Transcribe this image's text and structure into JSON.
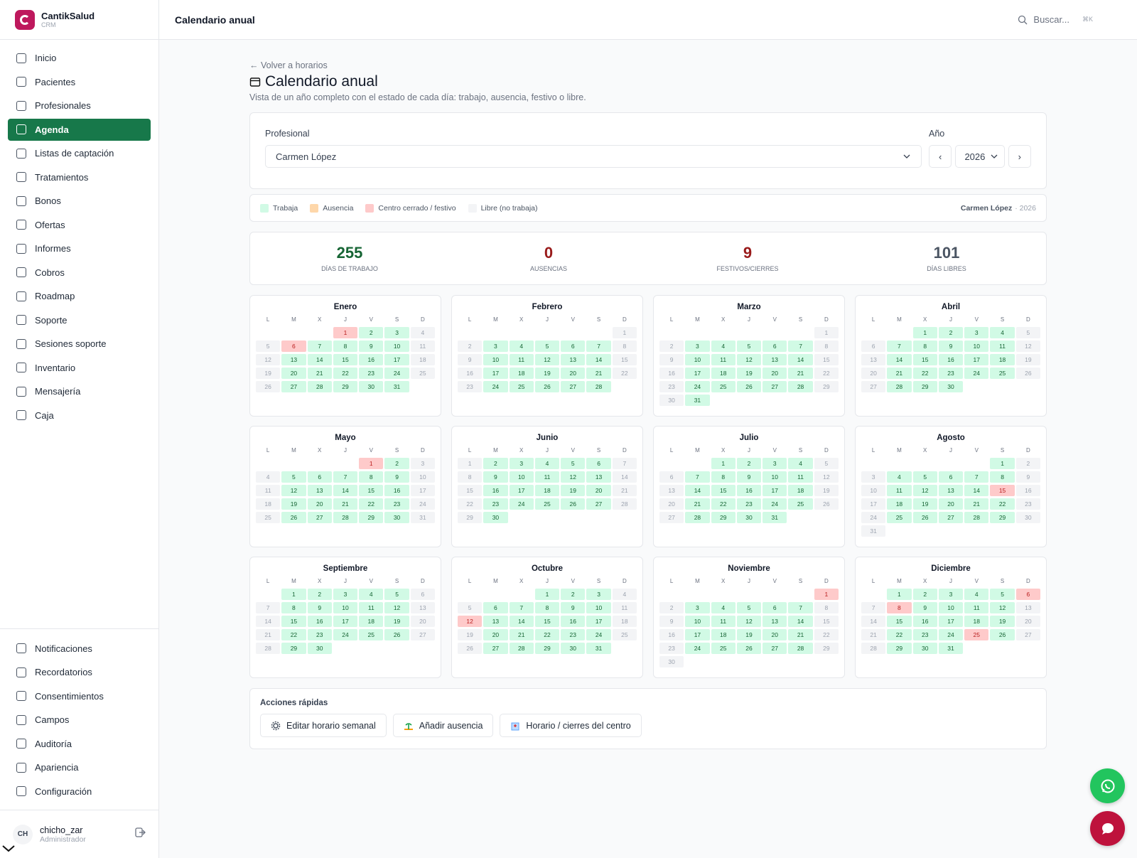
{
  "sidebar": {
    "brand": "CantikSalud",
    "brand_sub": "CRM",
    "nav": [
      {
        "label": "Inicio"
      },
      {
        "label": "Pacientes"
      },
      {
        "label": "Profesionales"
      },
      {
        "label": "Agenda",
        "active": true
      },
      {
        "label": "Listas de captación"
      },
      {
        "label": "Tratamientos"
      },
      {
        "label": "Bonos"
      },
      {
        "label": "Ofertas"
      },
      {
        "label": "Informes"
      },
      {
        "label": "Cobros"
      },
      {
        "label": "Roadmap"
      },
      {
        "label": "Soporte"
      },
      {
        "label": "Sesiones soporte"
      },
      {
        "label": "Inventario"
      },
      {
        "label": "Mensajería"
      },
      {
        "label": "Caja"
      }
    ],
    "nav_bottom": [
      {
        "label": "Notificaciones"
      },
      {
        "label": "Recordatorios"
      },
      {
        "label": "Consentimientos"
      },
      {
        "label": "Campos"
      },
      {
        "label": "Auditoría"
      },
      {
        "label": "Apariencia"
      },
      {
        "label": "Configuración"
      }
    ],
    "user": {
      "initials": "CH",
      "name": "chicho_zar",
      "role": "Administrador"
    }
  },
  "topbar": {
    "title": "Calendario anual",
    "search": "Buscar...",
    "shortcut": "⌘K"
  },
  "page": {
    "back": "← Volver a horarios",
    "title": "Calendario anual",
    "subtitle": "Vista de un año completo con el estado de cada día: trabajo, ausencia, festivo o libre."
  },
  "filters": {
    "professional_label": "Profesional",
    "professional": "Carmen López",
    "year_label": "Año",
    "year": "2026",
    "prev": "‹",
    "next": "›"
  },
  "legend": {
    "items": [
      {
        "label": "Trabaja",
        "color": "#d1fae5",
        "text_color": "#166534"
      },
      {
        "label": "Ausencia",
        "color": "#fed7aa",
        "text_color": "#9a3412"
      },
      {
        "label": "Centro cerrado / festivo",
        "color": "#fecaca",
        "text_color": "#b91c1c"
      },
      {
        "label": "Libre (no trabaja)",
        "color": "#f3f4f6",
        "text_color": "#9ca3af"
      }
    ],
    "owner": "Carmen López",
    "year": "· 2026"
  },
  "stats": [
    {
      "value": "255",
      "label": "DÍAS DE TRABAJO",
      "color": "#166534"
    },
    {
      "value": "0",
      "label": "AUSENCIAS",
      "color": "#991b1b"
    },
    {
      "value": "9",
      "label": "FESTIVOS/CIERRES",
      "color": "#991b1b"
    },
    {
      "value": "101",
      "label": "DÍAS LIBRES",
      "color": "#4b5563"
    }
  ],
  "calendar": {
    "weekdays": [
      "L",
      "M",
      "X",
      "J",
      "V",
      "S",
      "D"
    ],
    "months": [
      {
        "name": "Enero",
        "days": [
          null,
          null,
          null,
          1,
          2,
          3,
          4,
          5,
          6,
          7,
          8,
          9,
          10,
          11,
          12,
          13,
          14,
          15,
          16,
          17,
          18,
          19,
          20,
          21,
          22,
          23,
          24,
          25,
          26,
          27,
          28,
          29,
          30,
          31
        ],
        "status": "2003320000330000033000003300000"
      },
      {
        "name": "Febrero",
        "days": [
          null,
          null,
          null,
          null,
          null,
          null,
          1,
          2,
          3,
          4,
          5,
          6,
          7,
          8,
          9,
          10,
          11,
          12,
          13,
          14,
          15,
          16,
          17,
          18,
          19,
          20,
          21,
          22,
          23,
          24,
          25,
          26,
          27,
          28
        ],
        "status": "3300000330000033000003300000"
      },
      {
        "name": "Marzo",
        "days": [
          null,
          null,
          null,
          null,
          null,
          null,
          1,
          2,
          3,
          4,
          5,
          6,
          7,
          8,
          9,
          10,
          11,
          12,
          13,
          14,
          15,
          16,
          17,
          18,
          19,
          20,
          21,
          22,
          23,
          24,
          25,
          26,
          27,
          28,
          29,
          30,
          31
        ],
        "status": "3300000330000033000003300000330"
      },
      {
        "name": "Abril",
        "days": [
          null,
          null,
          1,
          2,
          3,
          4,
          5,
          6,
          7,
          8,
          9,
          10,
          11,
          12,
          13,
          14,
          15,
          16,
          17,
          18,
          19,
          20,
          21,
          22,
          23,
          24,
          25,
          26,
          27,
          28,
          29,
          30
        ],
        "status": "000033000003300000330000033000"
      },
      {
        "name": "Mayo",
        "days": [
          null,
          null,
          null,
          null,
          1,
          2,
          3,
          4,
          5,
          6,
          7,
          8,
          9,
          10,
          11,
          12,
          13,
          14,
          15,
          16,
          17,
          18,
          19,
          20,
          21,
          22,
          23,
          24,
          25,
          26,
          27,
          28,
          29,
          30,
          31
        ],
        "status": "2033000003300000330000033000003"
      },
      {
        "name": "Junio",
        "days": [
          1,
          2,
          3,
          4,
          5,
          6,
          7,
          8,
          9,
          10,
          11,
          12,
          13,
          14,
          15,
          16,
          17,
          18,
          19,
          20,
          21,
          22,
          23,
          24,
          25,
          26,
          27,
          28,
          29,
          30
        ],
        "status": "300000330000033000003300000330"
      },
      {
        "name": "Julio",
        "days": [
          null,
          null,
          1,
          2,
          3,
          4,
          5,
          6,
          7,
          8,
          9,
          10,
          11,
          12,
          13,
          14,
          15,
          16,
          17,
          18,
          19,
          20,
          21,
          22,
          23,
          24,
          25,
          26,
          27,
          28,
          29,
          30,
          31
        ],
        "status": "0000330000033000003300000330000"
      },
      {
        "name": "Agosto",
        "days": [
          null,
          null,
          null,
          null,
          null,
          1,
          2,
          3,
          4,
          5,
          6,
          7,
          8,
          9,
          10,
          11,
          12,
          13,
          14,
          15,
          16,
          17,
          18,
          19,
          20,
          21,
          22,
          23,
          24,
          25,
          26,
          27,
          28,
          29,
          30,
          31
        ],
        "status": "0330000033000023300000330000033"
      },
      {
        "name": "Septiembre",
        "days": [
          null,
          1,
          2,
          3,
          4,
          5,
          6,
          7,
          8,
          9,
          10,
          11,
          12,
          13,
          14,
          15,
          16,
          17,
          18,
          19,
          20,
          21,
          22,
          23,
          24,
          25,
          26,
          27,
          28,
          29,
          30
        ],
        "status": "000003300000330000033000003300"
      },
      {
        "name": "Octubre",
        "days": [
          null,
          null,
          null,
          1,
          2,
          3,
          4,
          5,
          6,
          7,
          8,
          9,
          10,
          11,
          12,
          13,
          14,
          15,
          16,
          17,
          18,
          19,
          20,
          21,
          22,
          23,
          24,
          25,
          26,
          27,
          28,
          29,
          30,
          31
        ],
        "status": "0003300000320000033000003300000"
      },
      {
        "name": "Noviembre",
        "days": [
          null,
          null,
          null,
          null,
          null,
          null,
          1,
          2,
          3,
          4,
          5,
          6,
          7,
          8,
          9,
          10,
          11,
          12,
          13,
          14,
          15,
          16,
          17,
          18,
          19,
          20,
          21,
          22,
          23,
          24,
          25,
          26,
          27,
          28,
          29,
          30
        ],
        "status": "230000033000003300000330000033"
      },
      {
        "name": "Diciembre",
        "days": [
          null,
          1,
          2,
          3,
          4,
          5,
          6,
          7,
          8,
          9,
          10,
          11,
          12,
          13,
          14,
          15,
          16,
          17,
          18,
          19,
          20,
          21,
          22,
          23,
          24,
          25,
          26,
          27,
          28,
          29,
          30,
          31
        ],
        "status": "0000023200003300000330002033000"
      }
    ]
  },
  "quick_actions": {
    "title": "Acciones rápidas",
    "buttons": [
      "Editar horario semanal",
      "Añadir ausencia",
      "Horario / cierres del centro"
    ]
  }
}
